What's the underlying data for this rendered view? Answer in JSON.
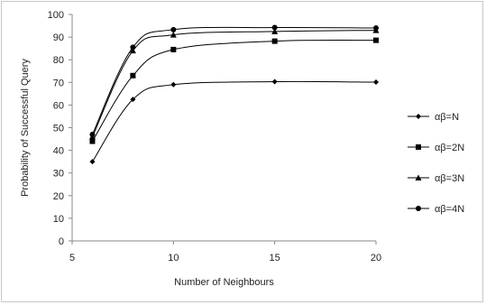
{
  "chart_data": {
    "type": "line",
    "smooth": true,
    "title": "",
    "xlabel": "Number of Neighbours",
    "ylabel": "Probability of Successful Query",
    "xlim": [
      5,
      20
    ],
    "ylim": [
      0,
      100
    ],
    "x_ticks": [
      5,
      10,
      15,
      20
    ],
    "y_ticks": [
      0,
      10,
      20,
      30,
      40,
      50,
      60,
      70,
      80,
      90,
      100
    ],
    "grid": false,
    "legend_position": "right",
    "x": [
      6,
      8,
      10,
      15,
      20
    ],
    "series": [
      {
        "name": "αβ=N",
        "marker": "diamond",
        "values": [
          35,
          62.5,
          69,
          70.3,
          70.1
        ]
      },
      {
        "name": "αβ=2N",
        "marker": "square",
        "values": [
          44,
          73,
          84.5,
          88.2,
          88.6
        ]
      },
      {
        "name": "αβ=3N",
        "marker": "triangle",
        "values": [
          46,
          84,
          91,
          92.5,
          93
        ]
      },
      {
        "name": "αβ=4N",
        "marker": "circle",
        "values": [
          47,
          85.5,
          93.3,
          94.2,
          94
        ]
      }
    ],
    "colors": {
      "line": "#000000",
      "axis": "#888888"
    }
  }
}
